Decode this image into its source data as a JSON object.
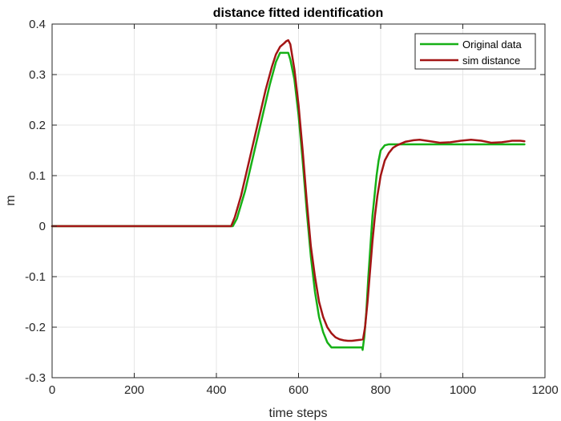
{
  "chart_data": {
    "type": "line",
    "title": "distance fitted identification",
    "xlabel": "time steps",
    "ylabel": "m",
    "xlim": [
      0,
      1200
    ],
    "ylim": [
      -0.3,
      0.4
    ],
    "xticks": [
      0,
      200,
      400,
      600,
      800,
      1000,
      1200
    ],
    "yticks": [
      -0.3,
      -0.2,
      -0.1,
      0,
      0.1,
      0.2,
      0.3,
      0.4
    ],
    "xtick_labels": [
      "0",
      "200",
      "400",
      "600",
      "800",
      "1000",
      "1200"
    ],
    "ytick_labels": [
      "-0.3",
      "-0.2",
      "-0.1",
      "0",
      "0.1",
      "0.2",
      "0.3",
      "0.4"
    ],
    "grid": true,
    "legend_position": "top-right",
    "series": [
      {
        "name": "Original data",
        "color": "#16b016",
        "x": [
          0,
          440,
          450,
          470,
          490,
          510,
          530,
          545,
          555,
          565,
          575,
          580,
          590,
          600,
          610,
          620,
          630,
          640,
          650,
          660,
          670,
          680,
          700,
          720,
          740,
          755,
          756,
          760,
          765,
          770,
          775,
          780,
          785,
          790,
          795,
          800,
          810,
          820,
          840,
          900,
          1000,
          1100,
          1150
        ],
        "y": [
          0,
          0,
          0.015,
          0.07,
          0.14,
          0.21,
          0.28,
          0.325,
          0.343,
          0.343,
          0.343,
          0.33,
          0.29,
          0.22,
          0.13,
          0.03,
          -0.06,
          -0.13,
          -0.18,
          -0.21,
          -0.23,
          -0.24,
          -0.24,
          -0.24,
          -0.24,
          -0.24,
          -0.245,
          -0.22,
          -0.17,
          -0.1,
          -0.04,
          0.02,
          0.06,
          0.1,
          0.13,
          0.15,
          0.16,
          0.162,
          0.162,
          0.162,
          0.162,
          0.162,
          0.162
        ]
      },
      {
        "name": "sim distance",
        "color": "#a31515",
        "x": [
          0,
          436,
          445,
          460,
          480,
          500,
          520,
          535,
          545,
          555,
          565,
          570,
          575,
          580,
          590,
          600,
          610,
          620,
          630,
          640,
          650,
          660,
          670,
          680,
          690,
          700,
          710,
          720,
          730,
          740,
          750,
          757,
          762,
          768,
          774,
          780,
          786,
          792,
          800,
          810,
          820,
          830,
          840,
          860,
          880,
          895,
          920,
          945,
          970,
          995,
          1020,
          1045,
          1070,
          1095,
          1120,
          1140,
          1150
        ],
        "y": [
          0,
          0,
          0.018,
          0.06,
          0.13,
          0.2,
          0.27,
          0.315,
          0.34,
          0.355,
          0.362,
          0.366,
          0.368,
          0.36,
          0.31,
          0.24,
          0.15,
          0.05,
          -0.04,
          -0.1,
          -0.15,
          -0.18,
          -0.2,
          -0.212,
          -0.22,
          -0.224,
          -0.226,
          -0.227,
          -0.227,
          -0.226,
          -0.225,
          -0.224,
          -0.2,
          -0.15,
          -0.09,
          -0.03,
          0.02,
          0.06,
          0.1,
          0.13,
          0.145,
          0.155,
          0.16,
          0.167,
          0.17,
          0.171,
          0.168,
          0.165,
          0.166,
          0.169,
          0.171,
          0.169,
          0.165,
          0.166,
          0.169,
          0.169,
          0.168
        ]
      }
    ]
  }
}
